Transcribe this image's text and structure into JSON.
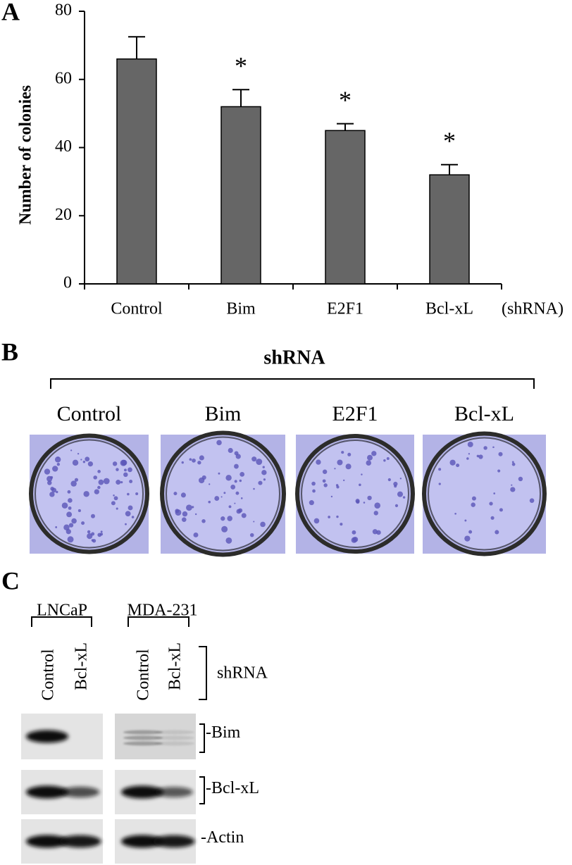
{
  "chart_data": {
    "type": "bar",
    "panel": "A",
    "y_label": "Number of colonies",
    "categories": [
      "Control",
      "Bim",
      "E2F1",
      "Bcl-xL"
    ],
    "values": [
      66,
      52,
      45,
      32
    ],
    "errors": [
      6.5,
      5,
      2,
      3
    ],
    "significance": [
      null,
      "*",
      "*",
      "*"
    ],
    "x_suffix": "(shRNA)",
    "color": "#666666",
    "ylim": [
      0,
      80
    ],
    "yticks": [
      0,
      20,
      40,
      60,
      80
    ]
  },
  "panel_b": {
    "label": "B",
    "title": "shRNA",
    "columns": [
      "Control",
      "Bim",
      "E2F1",
      "Bcl-xL"
    ]
  },
  "panel_c": {
    "label": "C",
    "groups": [
      {
        "name": "LNCaP",
        "lanes": [
          "Control",
          "Bcl-xL"
        ]
      },
      {
        "name": "MDA-231",
        "lanes": [
          "Control",
          "Bcl-xL"
        ]
      }
    ],
    "bracket_label": "shRNA",
    "bands": [
      "-Bim",
      "-Bcl-xL",
      "-Actin"
    ]
  }
}
